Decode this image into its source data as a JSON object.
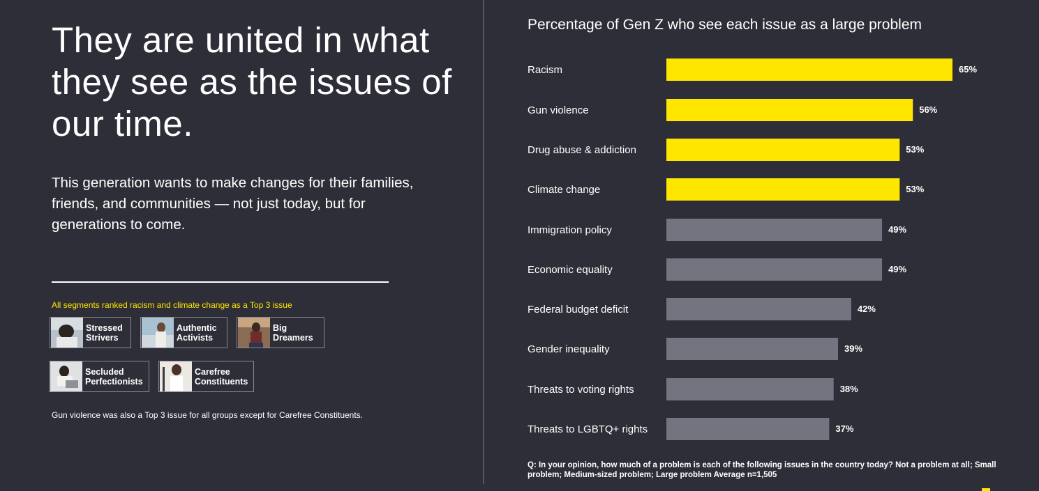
{
  "left": {
    "headline": "They are united in what they see as the issues of our time.",
    "subhead": "This generation wants to make changes for their families, friends, and communities — not just today, but for generations to come.",
    "segments_note": "All segments ranked racism and climate change as a Top 3 issue",
    "segments": [
      {
        "label": "Stressed\nStrivers"
      },
      {
        "label": "Authentic\nActivists"
      },
      {
        "label": "Big\nDreamers"
      },
      {
        "label": "Secluded\nPerfectionists"
      },
      {
        "label": "Carefree\nConstituents"
      }
    ],
    "footnote": "Gun violence was also a Top 3 issue for all groups except for Carefree Constituents."
  },
  "chart_data": {
    "type": "bar",
    "orientation": "horizontal",
    "title": "Percentage of Gen Z who see each issue as a large problem",
    "categories": [
      "Racism",
      "Gun violence",
      "Drug abuse & addiction",
      "Climate change",
      "Immigration policy",
      "Economic equality",
      "Federal budget deficit",
      "Gender inequality",
      "Threats to voting rights",
      "Threats to LGBTQ+ rights"
    ],
    "values": [
      65,
      56,
      53,
      53,
      49,
      49,
      42,
      39,
      38,
      37
    ],
    "value_labels": [
      "65%",
      "56%",
      "53%",
      "53%",
      "49%",
      "49%",
      "42%",
      "39%",
      "38%",
      "37%"
    ],
    "highlighted": [
      true,
      true,
      true,
      true,
      false,
      false,
      false,
      false,
      false,
      false
    ],
    "highlight_color": "#ffe600",
    "default_color": "#747480",
    "grid": false,
    "footnote": "Q: In your opinion, how much of a problem is each of the following issues in the country today? Not a problem at all; Small problem; Medium-sized problem; Large problem Average n=1,505"
  },
  "colors": {
    "background": "#2e2e38",
    "accent": "#ffe600",
    "text": "#ffffff"
  }
}
